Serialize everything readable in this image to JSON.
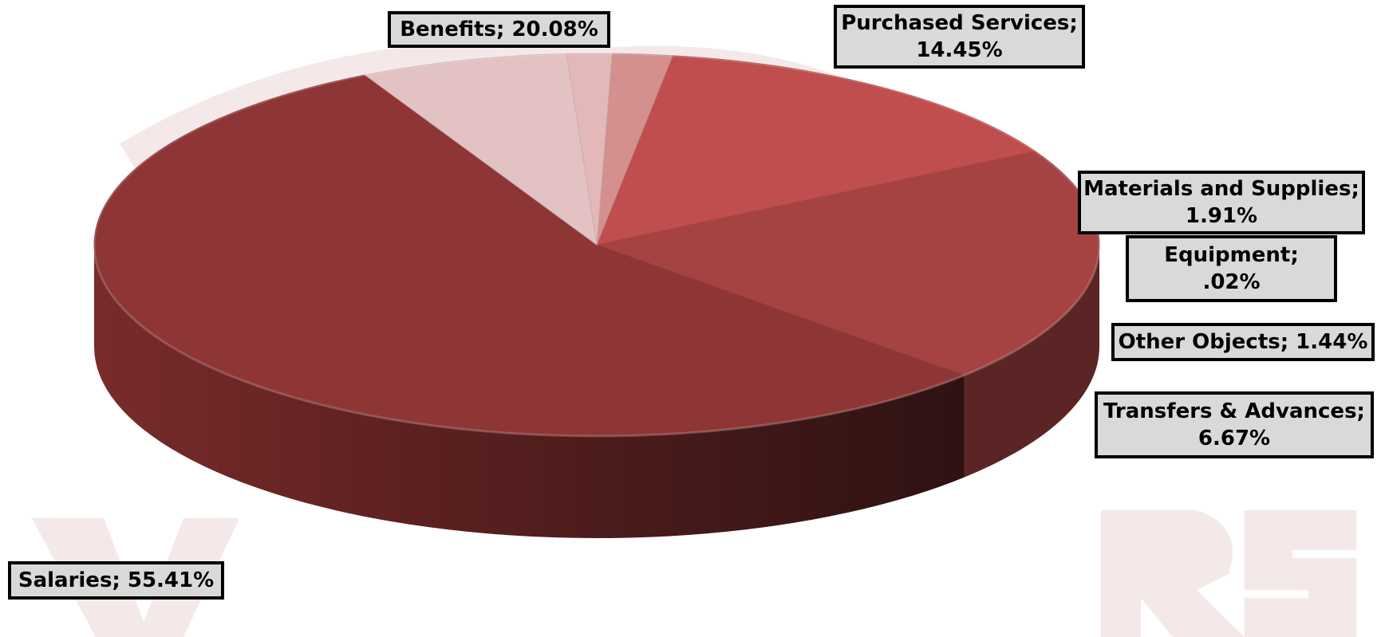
{
  "chart_data": {
    "type": "pie",
    "style": "3d",
    "title": "",
    "legend": "none",
    "slices": [
      {
        "category": "Salaries",
        "value": 55.41,
        "line1": "Salaries; 55.41%",
        "line2": "",
        "color": "#8e3636"
      },
      {
        "category": "Benefits",
        "value": 20.08,
        "line1": "Benefits; 20.08%",
        "line2": "",
        "color": "#a54343"
      },
      {
        "category": "Purchased Services",
        "value": 14.45,
        "line1": "Purchased Services;",
        "line2": "14.45%",
        "color": "#c04e4e"
      },
      {
        "category": "Materials and Supplies",
        "value": 1.91,
        "line1": "Materials and Supplies;",
        "line2": "1.91%",
        "color": "#d48f8f"
      },
      {
        "category": "Equipment",
        "value": 0.02,
        "line1": "Equipment;",
        "line2": ".02%",
        "color": "#dba5a5"
      },
      {
        "category": "Other Objects",
        "value": 1.44,
        "line1": "Other Objects; 1.44%",
        "line2": "",
        "color": "#e3b8b8"
      },
      {
        "category": "Transfers & Advances",
        "value": 6.67,
        "line1": "Transfers & Advances;",
        "line2": "6.67%",
        "color": "#e2c2c3"
      }
    ]
  }
}
